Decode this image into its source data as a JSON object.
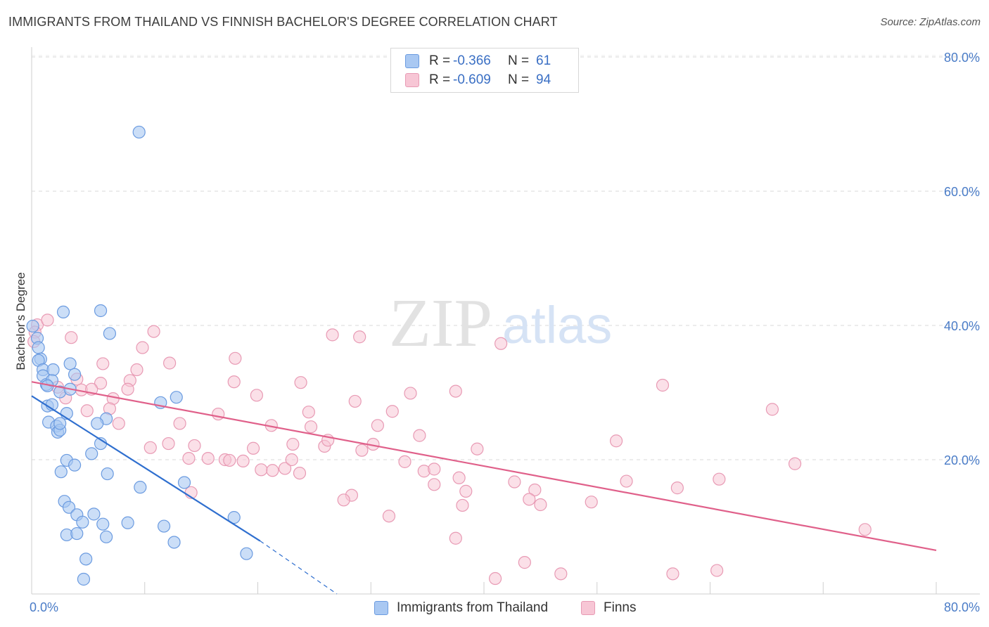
{
  "title": "IMMIGRANTS FROM THAILAND VS FINNISH BACHELOR'S DEGREE CORRELATION CHART",
  "source": "Source: ZipAtlas.com",
  "watermark": {
    "zip": "ZIP",
    "atlas": "atlas"
  },
  "legend": {
    "rows": [
      {
        "r_label": "R =",
        "r_value": "-0.366",
        "n_label": "N =",
        "n_value": "61",
        "color": "#a9c8f2",
        "border": "#5b8fd6"
      },
      {
        "r_label": "R =",
        "r_value": "-0.609",
        "n_label": "N =",
        "n_value": "94",
        "color": "#f7bfd0",
        "border": "#e07a9c"
      }
    ]
  },
  "bottom_legend": {
    "thailand": "Immigrants from Thailand",
    "finns": "Finns"
  },
  "colors": {
    "blue_fill": "#a9c8f2",
    "blue_stroke": "#6b9be0",
    "blue_line": "#2f6fcf",
    "pink_fill": "#f7c6d5",
    "pink_stroke": "#e89ab4",
    "pink_line": "#e0608a",
    "tick": "#4a7cc7",
    "grid": "#d9d9d9"
  },
  "chart_data": {
    "type": "scatter",
    "title": "IMMIGRANTS FROM THAILAND VS FINNISH BACHELOR'S DEGREE CORRELATION CHART",
    "xlabel": "",
    "ylabel": "Bachelor's Degree",
    "xlim": [
      0,
      80
    ],
    "ylim": [
      0,
      80
    ],
    "x_tick_labels": [
      {
        "value": 0,
        "label": "0.0%"
      },
      {
        "value": 80,
        "label": "80.0%"
      }
    ],
    "y_tick_labels": [
      {
        "value": 20,
        "label": "20.0%"
      },
      {
        "value": 40,
        "label": "40.0%"
      },
      {
        "value": 60,
        "label": "60.0%"
      },
      {
        "value": 80,
        "label": "80.0%"
      }
    ],
    "grid": true,
    "series": [
      {
        "name": "Immigrants from Thailand",
        "points": [
          [
            9.5,
            68.8
          ],
          [
            0.1,
            39.9
          ],
          [
            0.5,
            38.1
          ],
          [
            0.6,
            36.7
          ],
          [
            0.8,
            35.0
          ],
          [
            0.6,
            34.8
          ],
          [
            1.0,
            33.4
          ],
          [
            1.9,
            33.4
          ],
          [
            1.0,
            32.5
          ],
          [
            1.3,
            31.2
          ],
          [
            1.8,
            31.8
          ],
          [
            1.4,
            31.0
          ],
          [
            2.8,
            42.0
          ],
          [
            6.1,
            42.2
          ],
          [
            3.4,
            34.3
          ],
          [
            3.8,
            32.7
          ],
          [
            2.5,
            30.1
          ],
          [
            3.4,
            30.5
          ],
          [
            1.4,
            28.0
          ],
          [
            1.8,
            28.2
          ],
          [
            3.1,
            26.9
          ],
          [
            6.6,
            26.1
          ],
          [
            1.5,
            25.6
          ],
          [
            2.2,
            25.0
          ],
          [
            2.3,
            24.1
          ],
          [
            2.5,
            24.4
          ],
          [
            2.5,
            25.4
          ],
          [
            5.8,
            25.4
          ],
          [
            6.1,
            22.4
          ],
          [
            6.9,
            38.8
          ],
          [
            11.4,
            28.5
          ],
          [
            12.8,
            29.3
          ],
          [
            3.1,
            19.9
          ],
          [
            3.8,
            19.2
          ],
          [
            2.6,
            18.2
          ],
          [
            5.3,
            20.9
          ],
          [
            6.7,
            17.9
          ],
          [
            9.6,
            15.9
          ],
          [
            13.5,
            16.6
          ],
          [
            2.9,
            13.8
          ],
          [
            3.3,
            12.9
          ],
          [
            4.0,
            11.8
          ],
          [
            5.5,
            11.9
          ],
          [
            4.5,
            10.7
          ],
          [
            6.3,
            10.4
          ],
          [
            8.5,
            10.6
          ],
          [
            11.7,
            10.1
          ],
          [
            17.9,
            11.4
          ],
          [
            3.1,
            8.8
          ],
          [
            4.0,
            9.0
          ],
          [
            6.6,
            8.5
          ],
          [
            12.6,
            7.7
          ],
          [
            4.8,
            5.2
          ],
          [
            4.6,
            2.2
          ],
          [
            19.0,
            6.0
          ]
        ]
      },
      {
        "name": "Finns",
        "points": [
          [
            0.5,
            40.1
          ],
          [
            1.4,
            40.8
          ],
          [
            0.3,
            39.0
          ],
          [
            0.2,
            37.6
          ],
          [
            3.5,
            38.2
          ],
          [
            10.8,
            39.1
          ],
          [
            9.8,
            36.7
          ],
          [
            26.6,
            38.6
          ],
          [
            29.0,
            38.3
          ],
          [
            41.5,
            37.3
          ],
          [
            6.3,
            34.3
          ],
          [
            12.2,
            34.4
          ],
          [
            18.0,
            35.1
          ],
          [
            9.3,
            33.4
          ],
          [
            4.0,
            32.0
          ],
          [
            6.1,
            31.4
          ],
          [
            8.7,
            31.8
          ],
          [
            2.3,
            30.8
          ],
          [
            4.4,
            30.4
          ],
          [
            5.3,
            30.5
          ],
          [
            8.5,
            30.5
          ],
          [
            17.9,
            31.6
          ],
          [
            23.8,
            31.5
          ],
          [
            33.5,
            29.9
          ],
          [
            37.5,
            30.2
          ],
          [
            55.8,
            31.1
          ],
          [
            3.0,
            29.2
          ],
          [
            7.2,
            29.1
          ],
          [
            19.9,
            29.6
          ],
          [
            28.6,
            28.7
          ],
          [
            4.9,
            27.3
          ],
          [
            6.9,
            27.6
          ],
          [
            16.5,
            26.8
          ],
          [
            24.5,
            27.1
          ],
          [
            31.9,
            27.2
          ],
          [
            65.5,
            27.5
          ],
          [
            7.7,
            25.4
          ],
          [
            13.1,
            25.4
          ],
          [
            21.2,
            25.1
          ],
          [
            24.7,
            24.9
          ],
          [
            30.6,
            25.1
          ],
          [
            34.3,
            23.6
          ],
          [
            12.1,
            22.4
          ],
          [
            10.5,
            21.8
          ],
          [
            14.4,
            22.1
          ],
          [
            19.6,
            21.7
          ],
          [
            23.1,
            22.3
          ],
          [
            25.9,
            22.0
          ],
          [
            26.2,
            22.9
          ],
          [
            29.2,
            21.4
          ],
          [
            30.2,
            22.3
          ],
          [
            39.4,
            21.6
          ],
          [
            51.7,
            22.8
          ],
          [
            13.9,
            20.2
          ],
          [
            15.6,
            20.2
          ],
          [
            17.1,
            20.0
          ],
          [
            17.5,
            19.9
          ],
          [
            18.7,
            19.8
          ],
          [
            20.3,
            18.5
          ],
          [
            21.3,
            18.4
          ],
          [
            22.4,
            18.7
          ],
          [
            23.0,
            20.0
          ],
          [
            23.7,
            18.0
          ],
          [
            33.0,
            19.7
          ],
          [
            34.7,
            18.3
          ],
          [
            35.6,
            18.6
          ],
          [
            37.8,
            17.3
          ],
          [
            67.5,
            19.4
          ],
          [
            14.1,
            15.1
          ],
          [
            28.3,
            14.7
          ],
          [
            27.6,
            14.0
          ],
          [
            35.6,
            16.3
          ],
          [
            38.4,
            15.3
          ],
          [
            42.7,
            16.7
          ],
          [
            44.5,
            15.5
          ],
          [
            52.6,
            16.8
          ],
          [
            57.1,
            15.8
          ],
          [
            60.8,
            17.1
          ],
          [
            31.6,
            11.6
          ],
          [
            37.5,
            8.3
          ],
          [
            38.1,
            13.2
          ],
          [
            44.0,
            14.1
          ],
          [
            45.0,
            13.3
          ],
          [
            49.5,
            13.7
          ],
          [
            73.7,
            9.6
          ],
          [
            43.6,
            4.7
          ],
          [
            41.0,
            2.3
          ],
          [
            46.8,
            3.0
          ],
          [
            56.7,
            3.0
          ],
          [
            60.6,
            3.5
          ]
        ]
      }
    ],
    "trend_lines": [
      {
        "series": "Immigrants from Thailand",
        "solid": [
          [
            0,
            29.5
          ],
          [
            20.2,
            7.9
          ]
        ],
        "dashed": [
          [
            20.2,
            7.9
          ],
          [
            27.0,
            0.0
          ]
        ]
      },
      {
        "series": "Finns",
        "solid": [
          [
            0,
            31.6
          ],
          [
            80,
            6.5
          ]
        ]
      }
    ]
  }
}
